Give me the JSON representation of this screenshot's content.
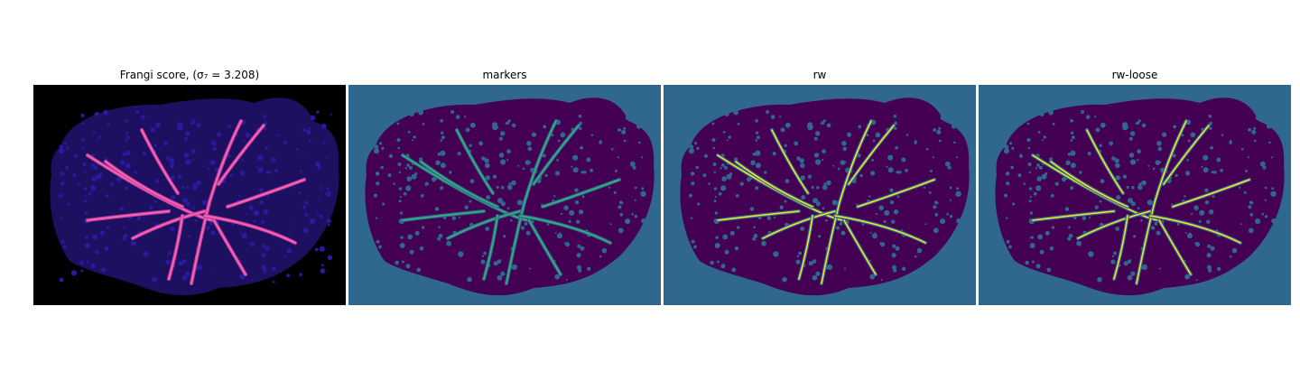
{
  "panels": [
    {
      "title": "Frangi score, (σ₇ = 3.208)",
      "colormap": "magma",
      "background": "#000000",
      "tissue": "#1e1060",
      "texture": "#2a1aa0",
      "vessel_colors": [
        "#c43fa0",
        "#ff6ab4"
      ]
    },
    {
      "title": "markers",
      "colormap": "viridis",
      "background": "#30678d",
      "tissue": "#440154",
      "texture": "#30678d",
      "vessel_colors": [
        "#30678d",
        "#35b779"
      ]
    },
    {
      "title": "rw",
      "colormap": "viridis",
      "background": "#30678d",
      "tissue": "#440154",
      "texture": "#30678d",
      "vessel_colors": [
        "#30678d",
        "#fde725"
      ]
    },
    {
      "title": "rw-loose",
      "colormap": "viridis",
      "background": "#30678d",
      "tissue": "#440154",
      "texture": "#30678d",
      "vessel_colors": [
        "#30678d",
        "#fde725"
      ]
    }
  ]
}
